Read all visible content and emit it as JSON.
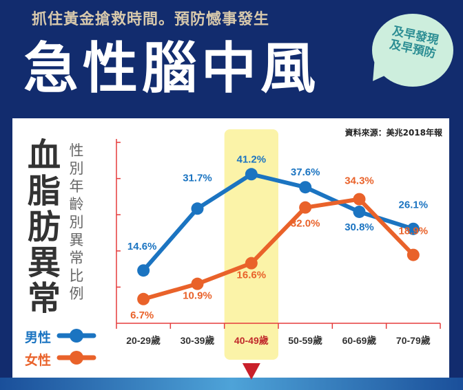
{
  "header": {
    "subtitle": "抓住黃金搶救時間。預防憾事發生",
    "title": "急性腦中風",
    "bubble_line1": "及早發現",
    "bubble_line2": "及早預防"
  },
  "source": "資料來源：美兆2018年報",
  "side_title": "血脂肪異常",
  "side_subtitle": "性別年齡別異常比例",
  "colors": {
    "male": "#1b74c1",
    "female": "#e9622a",
    "axis": "#e53b3b",
    "highlight": "#fbf3a8",
    "highlight_label": "#c0282a"
  },
  "chart_data": {
    "type": "line",
    "title": "血脂肪異常 性別年齡別異常比例",
    "categories": [
      "20-29歲",
      "30-39歲",
      "40-49歲",
      "50-59歲",
      "60-69歲",
      "70-79歲"
    ],
    "highlight_category": "40-49歲",
    "ylim": [
      0,
      50
    ],
    "ytick_step": 10,
    "series": [
      {
        "name": "男性",
        "values": [
          14.6,
          31.7,
          41.2,
          37.6,
          30.8,
          26.1
        ],
        "labels": [
          "14.6%",
          "31.7%",
          "41.2%",
          "37.6%",
          "30.8%",
          "26.1%"
        ]
      },
      {
        "name": "女性",
        "values": [
          6.7,
          10.9,
          16.6,
          32.0,
          34.3,
          18.9
        ],
        "labels": [
          "6.7%",
          "10.9%",
          "16.6%",
          "32.0%",
          "34.3%",
          "18.9%"
        ]
      }
    ],
    "legend": "bottom-left"
  }
}
